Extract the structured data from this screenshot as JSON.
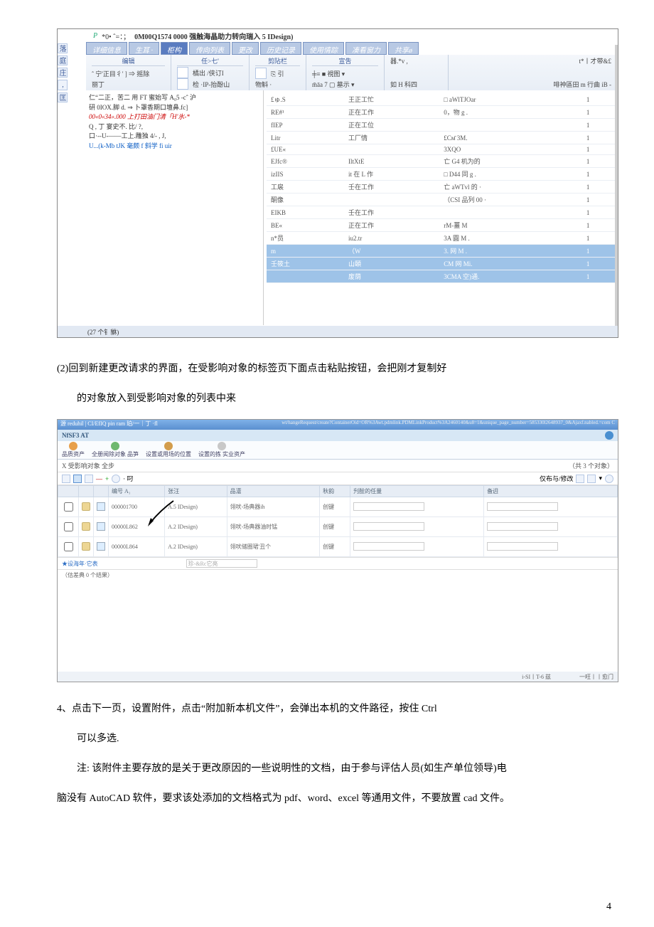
{
  "shot1": {
    "top_icon": "P",
    "title_prefix": "*0• ˆ=：；",
    "title": "0M00Q1574 0000 强触海晶助力转向瑞入 5 IDesign)",
    "side_tabs": [
      "落",
      "庭",
      "庄",
      ",",
      "匡"
    ],
    "tabs": [
      "详细信息",
      "生耳 ·",
      "柜构",
      "传向列表",
      "更改",
      "历史记录",
      "使用情踪",
      "凑看窗力",
      "共享ø"
    ],
    "active_tab_index": 2,
    "ribbon": {
      "groups": [
        {
          "title": "编辑",
          "row1": "ˆ 宁'正目彳' ] ⇒ 摇除",
          "row2": "丽丁"
        },
        {
          "title": "任>七'",
          "row1": "橘出   /侠订I",
          "row2": "检   ·IP-抬酚山"
        },
        {
          "title": "剪阽栏",
          "row1": "⎘    引",
          "row2": "物斛   ·"
        },
        {
          "title": "宣吿",
          "row1": "╪≡    ■ 視图 ▾",
          "row2": "m̄āa 7    ▢ 墓示 ▾"
        },
        {
          "title": "",
          "row1": "器.*v ,",
          "row2": "如 H 科四"
        },
        {
          "title": "",
          "row1": "t*丨才带&£",
          "row2": "啡祌區田 m 行曲 iB -"
        }
      ]
    },
    "tree_lines": [
      "仁“二正，苦二        用 FT 蜜始写 A₀5 -cˆ 沪",
      "研 0IOX.脚 d. ⇒ 卜罩香期口壇鼻.fc]",
      "00«0«34».000 上打田油门清「H'氷-*",
      "Q , 丁          宴史不. 比/ ?,",
      "口·--U-——工上.雕独 4/- , J,",
      "U...(k-Mb tJK 毫颇 f 斜学 fi uir"
    ],
    "tree_red_index": 2,
    "grid_rows": [
      {
        "c1": "£ゅ.S",
        "c2": "王正工忙",
        "c3": "□ aWlTJOar",
        "c4": "1"
      },
      {
        "c1": "RE#¹",
        "c2": "正在工作",
        "c3": "0，物 g .",
        "c4": "1"
      },
      {
        "c1": "fIEP",
        "c2": "正在工位",
        "c3": "",
        "c4": "1"
      },
      {
        "c1": "Litr",
        "c2": "工厂情",
        "c3": "£Cм̄ 3M.",
        "c4": "1"
      },
      {
        "c1": "£UE«",
        "c2": "",
        "c3": "3XQO",
        "c4": "1"
      },
      {
        "c1": "EJfc®",
        "c2": "IltXtE",
        "c3": "亡 G4 机为的",
        "c4": "1"
      },
      {
        "c1": "izIIS",
        "c2": "it 在 L 作",
        "c3": "□ D44 同 g .",
        "c4": "1"
      },
      {
        "c1": "工扆",
        "c2": "壬在工作",
        "c3": "亡 aWTvl 的 ·",
        "c4": "1"
      },
      {
        "c1": "酮像",
        "c2": "",
        "c3": "（CSI 品列 00 ·",
        "c4": "1"
      },
      {
        "c1": "EIKB",
        "c2": "壬在工作",
        "c3": "",
        "c4": "1"
      },
      {
        "c1": "BE«",
        "c2": "正在工作",
        "c3": "rM-薑 M",
        "c4": "1"
      },
      {
        "c1": "n*员",
        "c2": "iu2.tr",
        "c3": "3A 圓 M  .",
        "c4": "1"
      },
      {
        "c1": "m",
        "c2": "（W",
        "c3": "3. 网 M  .",
        "c4": "1",
        "sel": true
      },
      {
        "c1": "壬筱土",
        "c2": "山頣",
        "c3": "CM 网 Mi.",
        "c4": "1",
        "sel": true
      },
      {
        "c1": "",
        "c2": "废荫",
        "c3": "3CMA 空)通.",
        "c4": "1",
        "sel": true
      }
    ],
    "status": "(27 个钅貅)"
  },
  "para2": "(2)回到新建更改请求的界面，在受影响对象的标签页下面点击粘贴按钮，会把刚才复制好",
  "para2b": "的对象放入到受影响对象的列表中来",
  "shot2": {
    "win_title": "源 reduhil | CI/EfIQ pin ram  珀/一｜丁 ·fl",
    "url": "wt/hangeRequest/create?ContainerOid=OR%3Awt.pdmlink.PDMLinkProduct%3A2460140&u8=1&unique_page_number=585330l2648937_0&Ajaxf.nabled.=com C",
    "appname": "NfSF3 AT",
    "toolbar": [
      "品质资产",
      "全册阅除对象 品笋",
      "设置或用场的位置",
      "设置的拣  实业资产"
    ],
    "section_left": "X 受影响对象  全步",
    "section_right": "（共 3 个对象）",
    "mini_label": "· 叼",
    "mini_right_label": "仅布与/修改",
    "columns": [
      "",
      "",
      "",
      "编号 A₁",
      "张汪",
      "品濸",
      "秋韵",
      "刋酫的任量",
      "备迌"
    ],
    "rows": [
      {
        "num": "000001700",
        "rv": "A.5 IDesign)",
        "name": "翎吠-场典器ih",
        "state": "创键"
      },
      {
        "num": "00000L862",
        "rv": "A.2 IDesign)",
        "name": "翎吠-场典器油时锰",
        "state": "创键"
      },
      {
        "num": "00000L864",
        "rv": "A.2 IDesign)",
        "name": "翎吠储圈珺'丑个",
        "state": "创键"
      }
    ],
    "context_label1": "★设海年·它表",
    "context_input1": "珍-&Rc它亮",
    "context_label2": "（估差典 0 个结果）",
    "footer_left": "i-SI丨T-6 兹",
    "footer_right": "一旺丨丨愈门"
  },
  "para4_lead": "4、",
  "para4": "点击下一页，设置附件，点击“附加新本机文件”，会弹出本机的文件路径，按住 Ctrl",
  "para4b": "可以多选.",
  "note_lead": "注:",
  "note": " 该附件主要存放的是关于更改原因的一些说明性的文档，由于参与评估人员(如生产单位领导)电",
  "note2": "脑没有 AutoCAD 软件，要求该处添加的文档格式为 pdf、word、excel 等通用文件，不要放置 cad 文件。",
  "page_number": "4"
}
